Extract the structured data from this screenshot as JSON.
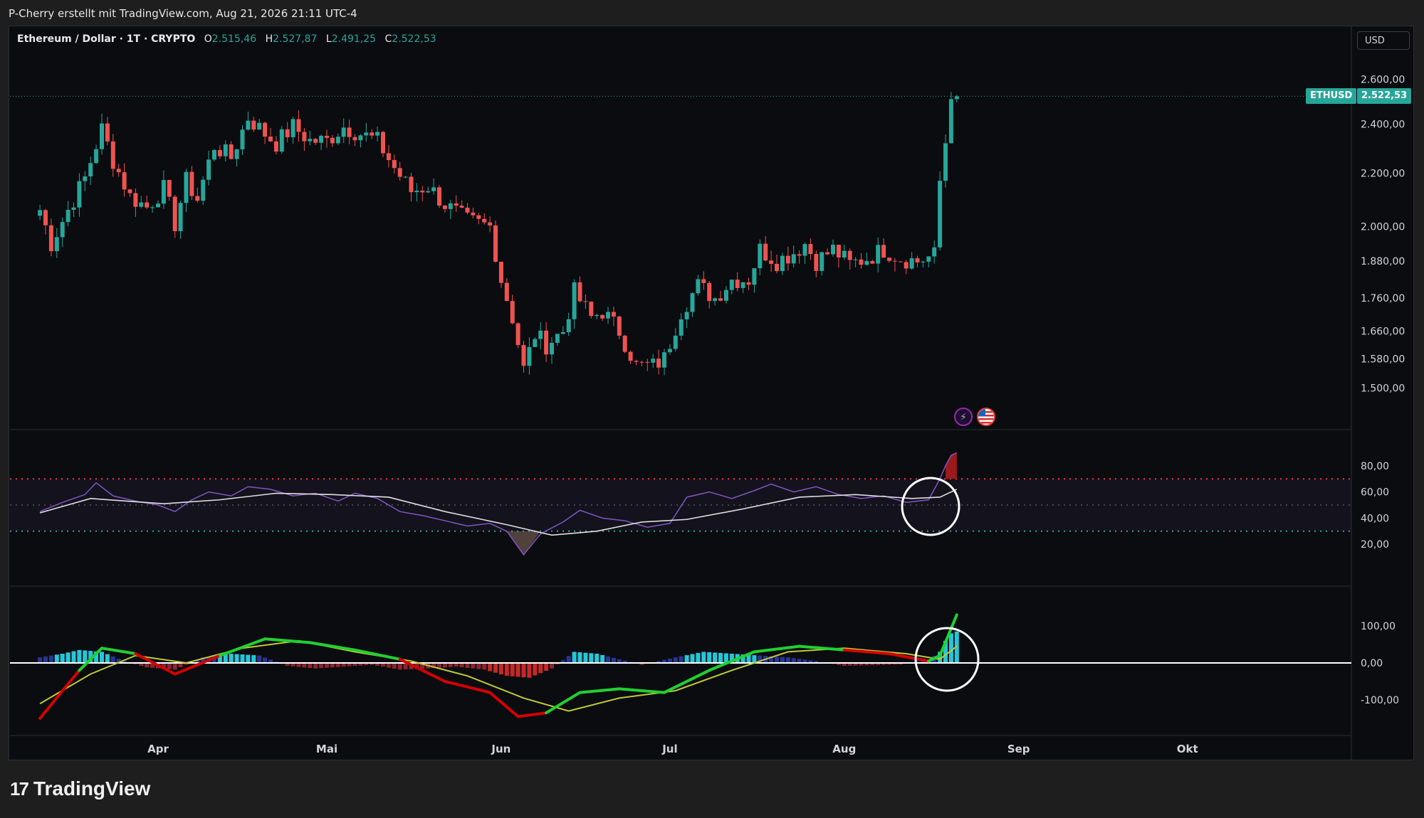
{
  "header": {
    "credit": "P-Cherry erstellt mit TradingView.com, Aug 21, 2026 21:11 UTC-4"
  },
  "legend": {
    "symbol": "Ethereum / Dollar · 1T · CRYPTO",
    "open_label": "O",
    "open": "2.515,46",
    "high_label": "H",
    "high": "2.527,87",
    "low_label": "L",
    "low": "2.491,25",
    "close_label": "C",
    "close": "2.522,53"
  },
  "currency_button": "USD",
  "price_badge": {
    "symbol": "ETHUSD",
    "price": "2.522,53"
  },
  "brand": {
    "name": "TradingView",
    "logo_text": "17"
  },
  "colors": {
    "up": "#26a69a",
    "down": "#ef5350",
    "rsi": "#7e57c2",
    "overbought": "#f23645",
    "oversold": "#22ab94"
  },
  "chart_data": [
    {
      "type": "candlestick",
      "series_label": "Ethereum / Dollar · 1T · CRYPTO",
      "scale": "log",
      "ylim": [
        1450,
        2720
      ],
      "x_axis_ticks": [
        "Apr",
        "Mai",
        "Jun",
        "Jul",
        "Aug",
        "Sep",
        "Okt"
      ],
      "y_axis_ticks": [
        "2.600,00",
        "2.400,00",
        "2.200,00",
        "2.000,00",
        "1.880,00",
        "1.760,00",
        "1.660,00",
        "1.580,00",
        "1.500,00"
      ],
      "last_price": 2522.53,
      "close_path": [
        {
          "date": "03-11",
          "close": 2060
        },
        {
          "date": "03-13",
          "close": 1940
        },
        {
          "date": "03-16",
          "close": 2060
        },
        {
          "date": "03-19",
          "close": 2180
        },
        {
          "date": "03-22",
          "close": 2380
        },
        {
          "date": "03-24",
          "close": 2250
        },
        {
          "date": "03-27",
          "close": 2110
        },
        {
          "date": "03-30",
          "close": 2070
        },
        {
          "date": "04-02",
          "close": 2140
        },
        {
          "date": "04-04",
          "close": 2010
        },
        {
          "date": "04-06",
          "close": 2170
        },
        {
          "date": "04-08",
          "close": 2100
        },
        {
          "date": "04-11",
          "close": 2310
        },
        {
          "date": "04-14",
          "close": 2260
        },
        {
          "date": "04-17",
          "close": 2430
        },
        {
          "date": "04-20",
          "close": 2360
        },
        {
          "date": "04-22",
          "close": 2320
        },
        {
          "date": "04-25",
          "close": 2390
        },
        {
          "date": "04-28",
          "close": 2330
        },
        {
          "date": "05-01",
          "close": 2330
        },
        {
          "date": "05-04",
          "close": 2390
        },
        {
          "date": "05-07",
          "close": 2360
        },
        {
          "date": "05-10",
          "close": 2330
        },
        {
          "date": "05-13",
          "close": 2220
        },
        {
          "date": "05-16",
          "close": 2130
        },
        {
          "date": "05-19",
          "close": 2150
        },
        {
          "date": "05-22",
          "close": 2080
        },
        {
          "date": "05-26",
          "close": 2020
        },
        {
          "date": "05-30",
          "close": 2000
        },
        {
          "date": "06-01",
          "close": 1820
        },
        {
          "date": "06-03",
          "close": 1700
        },
        {
          "date": "06-05",
          "close": 1550
        },
        {
          "date": "06-07",
          "close": 1650
        },
        {
          "date": "06-09",
          "close": 1620
        },
        {
          "date": "06-12",
          "close": 1660
        },
        {
          "date": "06-14",
          "close": 1780
        },
        {
          "date": "06-17",
          "close": 1700
        },
        {
          "date": "06-19",
          "close": 1720
        },
        {
          "date": "06-22",
          "close": 1660
        },
        {
          "date": "06-25",
          "close": 1560
        },
        {
          "date": "06-28",
          "close": 1560
        },
        {
          "date": "06-30",
          "close": 1580
        },
        {
          "date": "07-03",
          "close": 1720
        },
        {
          "date": "07-06",
          "close": 1800
        },
        {
          "date": "07-09",
          "close": 1760
        },
        {
          "date": "07-12",
          "close": 1820
        },
        {
          "date": "07-15",
          "close": 1820
        },
        {
          "date": "07-17",
          "close": 1920
        },
        {
          "date": "07-20",
          "close": 1880
        },
        {
          "date": "07-23",
          "close": 1910
        },
        {
          "date": "07-25",
          "close": 1940
        },
        {
          "date": "07-27",
          "close": 1880
        },
        {
          "date": "07-30",
          "close": 1920
        },
        {
          "date": "08-02",
          "close": 1870
        },
        {
          "date": "08-05",
          "close": 1890
        },
        {
          "date": "08-08",
          "close": 1920
        },
        {
          "date": "08-11",
          "close": 1890
        },
        {
          "date": "08-14",
          "close": 1880
        },
        {
          "date": "08-17",
          "close": 1900
        },
        {
          "date": "08-18",
          "close": 2170
        },
        {
          "date": "08-19",
          "close": 2320
        },
        {
          "date": "08-20",
          "close": 2510
        },
        {
          "date": "08-21",
          "close": 2522.53
        }
      ]
    },
    {
      "type": "line",
      "series_label": "",
      "ylim": [
        0,
        100
      ],
      "y_axis_ticks": [
        "80,00",
        "60,00",
        "40,00",
        "20,00"
      ],
      "overbought_level": 70,
      "oversold_level": 30,
      "mid_level": 50,
      "rsi_path": [
        {
          "date": "03-11",
          "rsi": 45
        },
        {
          "date": "03-15",
          "rsi": 52
        },
        {
          "date": "03-19",
          "rsi": 58
        },
        {
          "date": "03-21",
          "rsi": 67
        },
        {
          "date": "03-24",
          "rsi": 57
        },
        {
          "date": "03-28",
          "rsi": 53
        },
        {
          "date": "04-01",
          "rsi": 50
        },
        {
          "date": "04-04",
          "rsi": 45
        },
        {
          "date": "04-07",
          "rsi": 54
        },
        {
          "date": "04-10",
          "rsi": 60
        },
        {
          "date": "04-14",
          "rsi": 57
        },
        {
          "date": "04-17",
          "rsi": 64
        },
        {
          "date": "04-21",
          "rsi": 62
        },
        {
          "date": "04-25",
          "rsi": 57
        },
        {
          "date": "04-29",
          "rsi": 59
        },
        {
          "date": "05-03",
          "rsi": 53
        },
        {
          "date": "05-06",
          "rsi": 59
        },
        {
          "date": "05-10",
          "rsi": 55
        },
        {
          "date": "05-14",
          "rsi": 45
        },
        {
          "date": "05-18",
          "rsi": 42
        },
        {
          "date": "05-22",
          "rsi": 38
        },
        {
          "date": "05-26",
          "rsi": 34
        },
        {
          "date": "05-30",
          "rsi": 36
        },
        {
          "date": "06-02",
          "rsi": 30
        },
        {
          "date": "06-05",
          "rsi": 12
        },
        {
          "date": "06-08",
          "rsi": 28
        },
        {
          "date": "06-12",
          "rsi": 37
        },
        {
          "date": "06-15",
          "rsi": 46
        },
        {
          "date": "06-19",
          "rsi": 40
        },
        {
          "date": "06-23",
          "rsi": 38
        },
        {
          "date": "06-27",
          "rsi": 33
        },
        {
          "date": "07-01",
          "rsi": 36
        },
        {
          "date": "07-04",
          "rsi": 56
        },
        {
          "date": "07-08",
          "rsi": 60
        },
        {
          "date": "07-12",
          "rsi": 55
        },
        {
          "date": "07-16",
          "rsi": 61
        },
        {
          "date": "07-19",
          "rsi": 66
        },
        {
          "date": "07-23",
          "rsi": 60
        },
        {
          "date": "07-27",
          "rsi": 64
        },
        {
          "date": "07-31",
          "rsi": 58
        },
        {
          "date": "08-04",
          "rsi": 55
        },
        {
          "date": "08-08",
          "rsi": 57
        },
        {
          "date": "08-12",
          "rsi": 52
        },
        {
          "date": "08-16",
          "rsi": 54
        },
        {
          "date": "08-18",
          "rsi": 70
        },
        {
          "date": "08-19",
          "rsi": 80
        },
        {
          "date": "08-20",
          "rsi": 88
        },
        {
          "date": "08-21",
          "rsi": 90
        }
      ],
      "rsi_ma_path": [
        {
          "date": "03-11",
          "ma": 44
        },
        {
          "date": "03-20",
          "ma": 55
        },
        {
          "date": "04-02",
          "ma": 51
        },
        {
          "date": "04-12",
          "ma": 54
        },
        {
          "date": "04-22",
          "ma": 59
        },
        {
          "date": "05-02",
          "ma": 58
        },
        {
          "date": "05-12",
          "ma": 56
        },
        {
          "date": "05-22",
          "ma": 45
        },
        {
          "date": "06-02",
          "ma": 35
        },
        {
          "date": "06-10",
          "ma": 27
        },
        {
          "date": "06-18",
          "ma": 30
        },
        {
          "date": "06-26",
          "ma": 37
        },
        {
          "date": "07-04",
          "ma": 39
        },
        {
          "date": "07-14",
          "ma": 47
        },
        {
          "date": "07-24",
          "ma": 56
        },
        {
          "date": "08-03",
          "ma": 58
        },
        {
          "date": "08-13",
          "ma": 55
        },
        {
          "date": "08-18",
          "ma": 56
        },
        {
          "date": "08-21",
          "ma": 62
        }
      ]
    },
    {
      "type": "bar",
      "series_label": "",
      "ylim": [
        -200,
        200
      ],
      "y_axis_ticks": [
        "100,00",
        "0,00",
        "-100,00"
      ],
      "histogram": [
        {
          "date": "03-11",
          "v": 15
        },
        {
          "date": "03-15",
          "v": 25
        },
        {
          "date": "03-18",
          "v": 35
        },
        {
          "date": "03-22",
          "v": 30
        },
        {
          "date": "03-26",
          "v": 5
        },
        {
          "date": "03-30",
          "v": -12
        },
        {
          "date": "04-04",
          "v": -18
        },
        {
          "date": "04-09",
          "v": 15
        },
        {
          "date": "04-14",
          "v": 25
        },
        {
          "date": "04-19",
          "v": 20
        },
        {
          "date": "04-24",
          "v": -8
        },
        {
          "date": "04-29",
          "v": -15
        },
        {
          "date": "05-04",
          "v": -10
        },
        {
          "date": "05-09",
          "v": -5
        },
        {
          "date": "05-14",
          "v": -18
        },
        {
          "date": "05-19",
          "v": -15
        },
        {
          "date": "05-24",
          "v": -10
        },
        {
          "date": "05-29",
          "v": -18
        },
        {
          "date": "06-02",
          "v": -35
        },
        {
          "date": "06-06",
          "v": -40
        },
        {
          "date": "06-10",
          "v": -15
        },
        {
          "date": "06-14",
          "v": 30
        },
        {
          "date": "06-18",
          "v": 25
        },
        {
          "date": "06-22",
          "v": 10
        },
        {
          "date": "06-26",
          "v": -5
        },
        {
          "date": "07-02",
          "v": 15
        },
        {
          "date": "07-07",
          "v": 30
        },
        {
          "date": "07-12",
          "v": 25
        },
        {
          "date": "07-17",
          "v": 20
        },
        {
          "date": "07-22",
          "v": 15
        },
        {
          "date": "07-27",
          "v": 5
        },
        {
          "date": "08-01",
          "v": -8
        },
        {
          "date": "08-06",
          "v": -6
        },
        {
          "date": "08-11",
          "v": -4
        },
        {
          "date": "08-16",
          "v": 8
        },
        {
          "date": "08-18",
          "v": 30
        },
        {
          "date": "08-19",
          "v": 60
        },
        {
          "date": "08-20",
          "v": 80
        },
        {
          "date": "08-21",
          "v": 85
        }
      ],
      "macd_path": [
        {
          "date": "03-11",
          "v": -150
        },
        {
          "date": "03-18",
          "v": -20
        },
        {
          "date": "03-22",
          "v": 40
        },
        {
          "date": "03-28",
          "v": 25
        },
        {
          "date": "04-04",
          "v": -30
        },
        {
          "date": "04-12",
          "v": 20
        },
        {
          "date": "04-20",
          "v": 65
        },
        {
          "date": "04-28",
          "v": 55
        },
        {
          "date": "05-06",
          "v": 35
        },
        {
          "date": "05-14",
          "v": 10
        },
        {
          "date": "05-22",
          "v": -50
        },
        {
          "date": "05-30",
          "v": -80
        },
        {
          "date": "06-04",
          "v": -145
        },
        {
          "date": "06-09",
          "v": -135
        },
        {
          "date": "06-15",
          "v": -80
        },
        {
          "date": "06-22",
          "v": -70
        },
        {
          "date": "06-30",
          "v": -80
        },
        {
          "date": "07-08",
          "v": -20
        },
        {
          "date": "07-16",
          "v": 30
        },
        {
          "date": "07-24",
          "v": 45
        },
        {
          "date": "08-01",
          "v": 35
        },
        {
          "date": "08-09",
          "v": 25
        },
        {
          "date": "08-16",
          "v": 5
        },
        {
          "date": "08-18",
          "v": 20
        },
        {
          "date": "08-21",
          "v": 130
        }
      ],
      "signal_path": [
        {
          "date": "03-11",
          "v": -110
        },
        {
          "date": "03-20",
          "v": -30
        },
        {
          "date": "03-28",
          "v": 20
        },
        {
          "date": "04-06",
          "v": 0
        },
        {
          "date": "04-16",
          "v": 40
        },
        {
          "date": "04-26",
          "v": 60
        },
        {
          "date": "05-06",
          "v": 30
        },
        {
          "date": "05-16",
          "v": 5
        },
        {
          "date": "05-26",
          "v": -35
        },
        {
          "date": "06-05",
          "v": -95
        },
        {
          "date": "06-13",
          "v": -130
        },
        {
          "date": "06-22",
          "v": -95
        },
        {
          "date": "07-02",
          "v": -75
        },
        {
          "date": "07-12",
          "v": -20
        },
        {
          "date": "07-22",
          "v": 30
        },
        {
          "date": "08-01",
          "v": 40
        },
        {
          "date": "08-12",
          "v": 25
        },
        {
          "date": "08-18",
          "v": 10
        },
        {
          "date": "08-21",
          "v": 45
        }
      ]
    }
  ]
}
